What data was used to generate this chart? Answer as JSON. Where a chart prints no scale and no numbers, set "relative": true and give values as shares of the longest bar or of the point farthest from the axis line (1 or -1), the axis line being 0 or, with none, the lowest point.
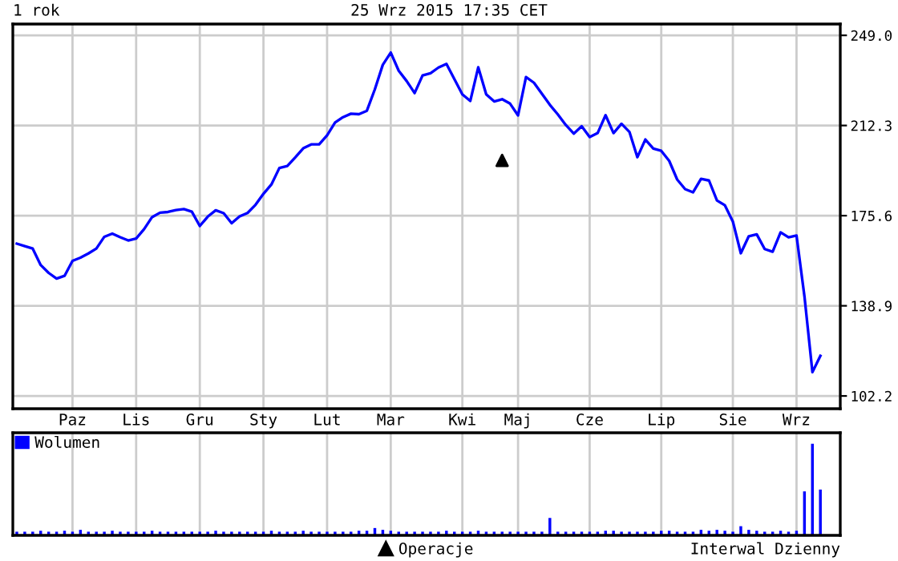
{
  "chart_data": [
    {
      "type": "line",
      "title": "1 rok",
      "subtitle": "25 Wrz 2015 17:35 CET",
      "categories": [
        null,
        null,
        null,
        null,
        null,
        null,
        null,
        "Paz",
        null,
        null,
        null,
        null,
        null,
        null,
        null,
        "Lis",
        null,
        null,
        null,
        null,
        null,
        null,
        null,
        "Gru",
        null,
        null,
        null,
        null,
        null,
        null,
        null,
        "Sty",
        null,
        null,
        null,
        null,
        null,
        null,
        null,
        "Lut",
        null,
        null,
        null,
        null,
        null,
        null,
        null,
        "Mar",
        null,
        null,
        null,
        null,
        null,
        null,
        null,
        null,
        "Kwi",
        null,
        null,
        null,
        null,
        null,
        null,
        "Maj",
        null,
        null,
        null,
        null,
        null,
        null,
        null,
        null,
        "Cze",
        null,
        null,
        null,
        null,
        null,
        null,
        null,
        null,
        "Lip",
        null,
        null,
        null,
        null,
        null,
        null,
        null,
        null,
        "Sie",
        null,
        null,
        null,
        null,
        null,
        null,
        null,
        "Wrz",
        null,
        null,
        null
      ],
      "series": [
        {
          "color": "#0000ff",
          "values": [
            164.2,
            163.2,
            162.2,
            155.5,
            152.3,
            150.0,
            151.1,
            157.2,
            158.5,
            160.2,
            162.2,
            167.0,
            168.3,
            166.8,
            165.5,
            166.3,
            170.1,
            175.0,
            176.8,
            177.1,
            177.9,
            178.3,
            177.2,
            171.4,
            175.2,
            177.8,
            176.6,
            172.5,
            175.3,
            176.7,
            180.0,
            184.5,
            188.3,
            195.0,
            195.8,
            199.3,
            203.0,
            204.6,
            204.6,
            208.3,
            213.5,
            215.7,
            217.1,
            216.9,
            218.3,
            227.0,
            237.0,
            242.0,
            234.6,
            230.4,
            225.5,
            232.7,
            233.6,
            235.9,
            237.4,
            231.2,
            225.0,
            222.3,
            236.0,
            225.0,
            222.1,
            223.0,
            221.2,
            216.4,
            232.0,
            229.7,
            225.2,
            220.7,
            216.8,
            212.5,
            209.0,
            212.0,
            207.6,
            209.2,
            216.5,
            209.2,
            213.0,
            209.7,
            199.4,
            206.6,
            202.9,
            202.0,
            197.9,
            190.3,
            186.4,
            185.1,
            190.6,
            189.9,
            181.8,
            179.8,
            173.2,
            160.3,
            167.2,
            168.0,
            162.0,
            160.9,
            168.8,
            166.8,
            167.5,
            142.7,
            111.9,
            118.5
          ]
        },
        {
          "name": "Operacje",
          "type": "scatter",
          "marker": "triangle",
          "color": "#000000",
          "values": [
            null,
            null,
            null,
            null,
            null,
            null,
            null,
            null,
            null,
            null,
            null,
            null,
            null,
            null,
            null,
            null,
            null,
            null,
            null,
            null,
            null,
            null,
            null,
            null,
            null,
            null,
            null,
            null,
            null,
            null,
            null,
            null,
            null,
            null,
            null,
            null,
            null,
            null,
            null,
            null,
            null,
            null,
            null,
            null,
            null,
            null,
            null,
            null,
            null,
            null,
            null,
            null,
            null,
            null,
            null,
            null,
            null,
            null,
            null,
            null,
            null,
            198.1,
            null,
            null,
            null,
            null,
            null,
            null,
            null,
            null,
            null,
            null,
            null,
            null,
            null,
            null,
            null,
            null,
            null,
            null,
            null,
            null,
            null,
            null,
            null,
            null,
            null,
            null,
            null,
            null,
            null,
            null,
            null,
            null,
            null,
            null,
            null,
            null,
            null,
            null,
            null,
            null
          ]
        }
      ],
      "ylim": [
        97,
        253.6
      ],
      "yticks": [
        102.2,
        138.9,
        175.6,
        212.3,
        {
          "value": 249,
          "label": "249.0"
        }
      ],
      "grid": true,
      "legend": "bottom",
      "annotations": [
        "Interwal Dzienny"
      ]
    },
    {
      "type": "bar",
      "relative": true,
      "grid": "x",
      "legend": "top left",
      "categories": [
        null,
        null,
        null,
        null,
        null,
        null,
        null,
        null,
        null,
        null,
        null,
        null,
        null,
        null,
        null,
        null,
        null,
        null,
        null,
        null,
        null,
        null,
        null,
        null,
        null,
        null,
        null,
        null,
        null,
        null,
        null,
        null,
        null,
        null,
        null,
        null,
        null,
        null,
        null,
        null,
        null,
        null,
        null,
        null,
        null,
        null,
        null,
        null,
        null,
        null,
        null,
        null,
        null,
        null,
        null,
        null,
        null,
        null,
        null,
        null,
        null,
        null,
        null,
        null,
        null,
        null,
        null,
        null,
        null,
        null,
        null,
        null,
        null,
        null,
        null,
        null,
        null,
        null,
        null,
        null,
        null,
        null,
        null,
        null,
        null,
        null,
        null,
        null,
        null,
        null,
        null,
        null,
        null,
        null,
        null,
        null,
        null,
        null,
        null,
        null,
        null,
        null
      ],
      "series": [
        {
          "name": "Wolumen",
          "color": "#0000ff",
          "values": [
            0.04,
            0.04,
            0.04,
            0.05,
            0.04,
            0.04,
            0.05,
            0.04,
            0.06,
            0.04,
            0.04,
            0.04,
            0.05,
            0.04,
            0.04,
            0.04,
            0.04,
            0.05,
            0.04,
            0.04,
            0.04,
            0.04,
            0.04,
            0.04,
            0.04,
            0.05,
            0.04,
            0.04,
            0.04,
            0.04,
            0.04,
            0.04,
            0.05,
            0.04,
            0.04,
            0.04,
            0.05,
            0.04,
            0.04,
            0.04,
            0.04,
            0.04,
            0.04,
            0.05,
            0.05,
            0.08,
            0.06,
            0.05,
            0.04,
            0.04,
            0.04,
            0.04,
            0.04,
            0.04,
            0.05,
            0.04,
            0.04,
            0.04,
            0.05,
            0.04,
            0.04,
            0.04,
            0.04,
            0.04,
            0.04,
            0.04,
            0.04,
            0.19,
            0.04,
            0.04,
            0.04,
            0.04,
            0.04,
            0.04,
            0.05,
            0.05,
            0.04,
            0.04,
            0.04,
            0.04,
            0.04,
            0.05,
            0.05,
            0.04,
            0.04,
            0.04,
            0.06,
            0.05,
            0.06,
            0.05,
            0.04,
            0.1,
            0.06,
            0.05,
            0.04,
            0.04,
            0.05,
            0.04,
            0.05,
            0.48,
            1.0,
            0.5
          ]
        }
      ]
    }
  ]
}
